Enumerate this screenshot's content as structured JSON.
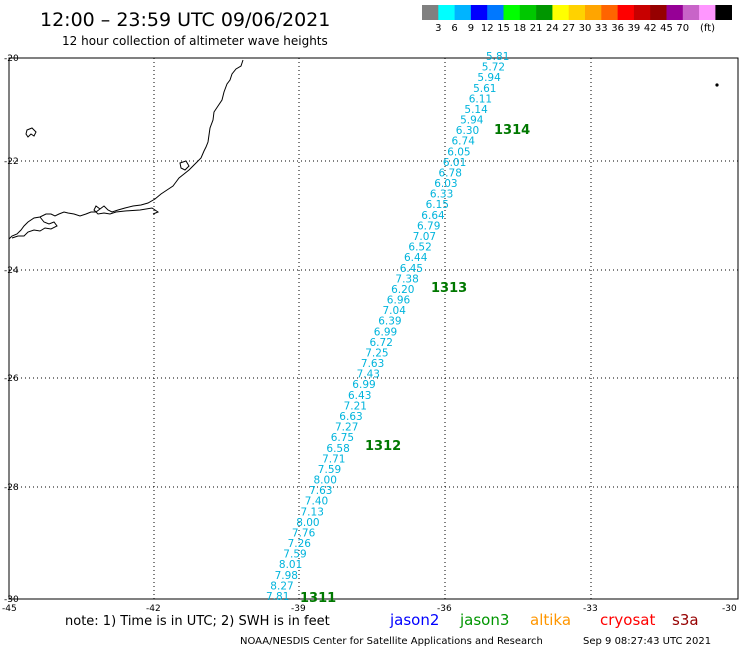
{
  "header": {
    "title": "12:00 – 23:59 UTC 09/06/2021",
    "subtitle": "12 hour collection of altimeter wave heights"
  },
  "legend": {
    "colors": [
      "#808080",
      "#00ffff",
      "#00b4ff",
      "#0000ff",
      "#0078ff",
      "#00ff00",
      "#00c800",
      "#009600",
      "#ffff00",
      "#ffd200",
      "#ffa500",
      "#ff6400",
      "#ff0000",
      "#c80000",
      "#960000",
      "#960096",
      "#c864c8",
      "#ff96ff",
      "#000000"
    ],
    "labels": [
      "3",
      "6",
      "9",
      "12",
      "15",
      "18",
      "21",
      "24",
      "27",
      "30",
      "33",
      "36",
      "39",
      "42",
      "45",
      "70"
    ],
    "unit": "(ft)"
  },
  "axes": {
    "lon_labels": [
      "-45",
      "-42",
      "-39",
      "-36",
      "-33",
      "-30"
    ],
    "lat_labels": [
      "-20",
      "-22",
      "-24",
      "-26",
      "-28",
      "-30"
    ]
  },
  "track": {
    "color": "#00b4dc",
    "values": [
      "5.81",
      "5.72",
      "5.94",
      "5.61",
      "6.11",
      "5.14",
      "5.94",
      "6.30",
      "6.74",
      "6.05",
      "6.01",
      "6.78",
      "6.03",
      "6.33",
      "6.15",
      "6.64",
      "6.79",
      "7.07",
      "6.52",
      "6.44",
      "6.45",
      "7.38",
      "6.20",
      "6.96",
      "7.04",
      "6.39",
      "6.99",
      "6.72",
      "7.25",
      "7.63",
      "7.43",
      "6.99",
      "6.43",
      "7.21",
      "6.63",
      "7.27",
      "6.75",
      "6.58",
      "7.71",
      "7.59",
      "8.00",
      "7.63",
      "7.40",
      "7.13",
      "8.00",
      "7.76",
      "7.26",
      "7.59",
      "8.01",
      "7.98",
      "8.27",
      "7.81"
    ],
    "passes": [
      {
        "label": "1314",
        "color": "#007800"
      },
      {
        "label": "1313",
        "color": "#007800"
      },
      {
        "label": "1312",
        "color": "#007800"
      },
      {
        "label": "1311",
        "color": "#007800"
      }
    ]
  },
  "footer": {
    "note": "note: 1) Time is in UTC; 2) SWH is in feet",
    "satellites": [
      {
        "name": "jason2",
        "color": "#0000ff"
      },
      {
        "name": "jason3",
        "color": "#009600"
      },
      {
        "name": "altika",
        "color": "#ff9600"
      },
      {
        "name": "cryosat",
        "color": "#ff0000"
      },
      {
        "name": "s3a",
        "color": "#960000"
      }
    ],
    "credit": "NOAA/NESDIS Center for Satellite Applications and Research",
    "timestamp": "Sep  9 08:27:43 UTC 2021"
  }
}
